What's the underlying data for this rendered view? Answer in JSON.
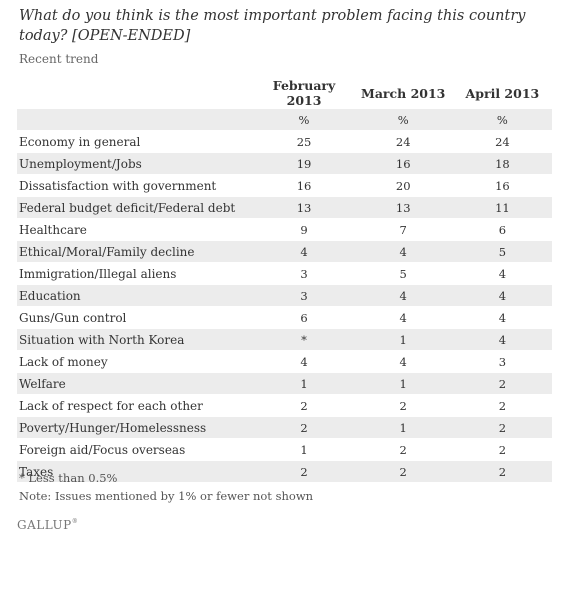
{
  "question": "What do you think is the most important problem facing this country today? [OPEN-ENDED]",
  "subtitle": "Recent trend",
  "table": {
    "columns": [
      "February 2013",
      "March 2013",
      "April 2013"
    ],
    "unit_row": [
      "%",
      "%",
      "%"
    ],
    "rows": [
      {
        "label": "Economy in general",
        "values": [
          "25",
          "24",
          "24"
        ]
      },
      {
        "label": "Unemployment/Jobs",
        "values": [
          "19",
          "16",
          "18"
        ]
      },
      {
        "label": "Dissatisfaction with government",
        "values": [
          "16",
          "20",
          "16"
        ]
      },
      {
        "label": "Federal budget deficit/Federal debt",
        "values": [
          "13",
          "13",
          "11"
        ]
      },
      {
        "label": "Healthcare",
        "values": [
          "9",
          "7",
          "6"
        ]
      },
      {
        "label": "Ethical/Moral/Family decline",
        "values": [
          "4",
          "4",
          "5"
        ]
      },
      {
        "label": "Immigration/Illegal aliens",
        "values": [
          "3",
          "5",
          "4"
        ]
      },
      {
        "label": "Education",
        "values": [
          "3",
          "4",
          "4"
        ]
      },
      {
        "label": "Guns/Gun control",
        "values": [
          "6",
          "4",
          "4"
        ]
      },
      {
        "label": "Situation with North Korea",
        "values": [
          "*",
          "1",
          "4"
        ]
      },
      {
        "label": "Lack of money",
        "values": [
          "4",
          "4",
          "3"
        ]
      },
      {
        "label": "Welfare",
        "values": [
          "1",
          "1",
          "2"
        ]
      },
      {
        "label": "Lack of respect for each other",
        "values": [
          "2",
          "2",
          "2"
        ]
      },
      {
        "label": "Poverty/Hunger/Homelessness",
        "values": [
          "2",
          "1",
          "2"
        ]
      },
      {
        "label": "Foreign aid/Focus overseas",
        "values": [
          "1",
          "2",
          "2"
        ]
      },
      {
        "label": "Taxes",
        "values": [
          "2",
          "2",
          "2"
        ]
      }
    ]
  },
  "footnotes": {
    "less_than": "* Less than 0.5%",
    "note": "Note: Issues mentioned by 1% or fewer not shown"
  },
  "logo": {
    "text": "GALLUP",
    "mark": "®"
  }
}
